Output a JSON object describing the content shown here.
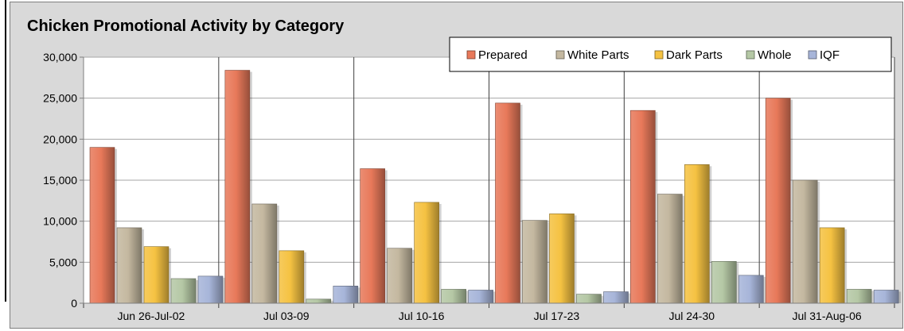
{
  "chart_data": {
    "type": "bar",
    "title": "Chicken Promotional Activity by Category",
    "xlabel": "",
    "ylabel": "",
    "ylim": [
      0,
      30000
    ],
    "yticks": [
      "0",
      "5,000",
      "10,000",
      "15,000",
      "20,000",
      "25,000",
      "30,000"
    ],
    "categories": [
      "Jun 26-Jul-02",
      "Jul 03-09",
      "Jul 10-16",
      "Jul 17-23",
      "Jul 24-30",
      "Jul 31-Aug-06"
    ],
    "legend_position": "top-right",
    "grid": true,
    "series": [
      {
        "name": "Prepared",
        "color": "#e8795a",
        "values": [
          19000,
          28400,
          16400,
          24400,
          23500,
          25000
        ]
      },
      {
        "name": "White Parts",
        "color": "#c4b8a0",
        "values": [
          9200,
          12100,
          6700,
          10100,
          13300,
          15000
        ]
      },
      {
        "name": "Dark Parts",
        "color": "#f5c242",
        "values": [
          6900,
          6400,
          12300,
          10900,
          16900,
          9200
        ]
      },
      {
        "name": "Whole",
        "color": "#b5c8a5",
        "values": [
          3000,
          500,
          1700,
          1100,
          5100,
          1700
        ]
      },
      {
        "name": "IQF",
        "color": "#a7b5d9",
        "values": [
          3300,
          2100,
          1600,
          1400,
          3400,
          1600
        ]
      }
    ]
  }
}
